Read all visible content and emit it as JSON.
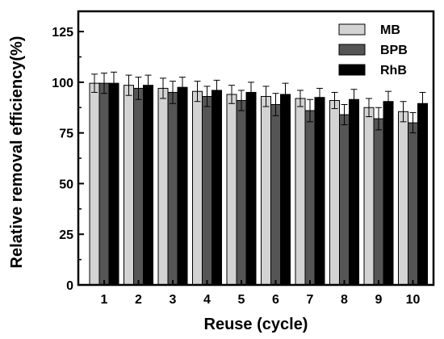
{
  "chart_data": {
    "type": "bar",
    "title": "",
    "xlabel": "Reuse (cycle)",
    "ylabel": "Relative removal  efficiency(%)",
    "ylim": [
      0,
      135
    ],
    "yticks": [
      0,
      25,
      50,
      75,
      100,
      125
    ],
    "categories": [
      "1",
      "2",
      "3",
      "4",
      "5",
      "6",
      "7",
      "8",
      "9",
      "10"
    ],
    "legend_position": "top-right",
    "grid": false,
    "series": [
      {
        "name": "MB",
        "color": "#d3d3d3",
        "values": [
          99.5,
          98.5,
          97,
          95.5,
          94,
          93,
          92,
          91,
          87.5,
          85.5
        ],
        "errors": [
          4.5,
          5,
          5,
          5,
          4.5,
          5,
          4,
          4,
          4.5,
          5
        ]
      },
      {
        "name": "BPB",
        "color": "#555555",
        "values": [
          99.5,
          97,
          95,
          93,
          91,
          89,
          86,
          84,
          82,
          80
        ],
        "errors": [
          5,
          5.5,
          5.5,
          5,
          5,
          5.5,
          5.5,
          5,
          5.5,
          5
        ]
      },
      {
        "name": "RhB",
        "color": "#000000",
        "values": [
          99.5,
          98.5,
          97.5,
          96,
          95,
          94,
          92.5,
          91.5,
          90.5,
          89.5
        ],
        "errors": [
          5.5,
          5,
          5,
          5,
          5,
          5.5,
          4.5,
          5,
          5,
          5.5
        ]
      }
    ]
  }
}
